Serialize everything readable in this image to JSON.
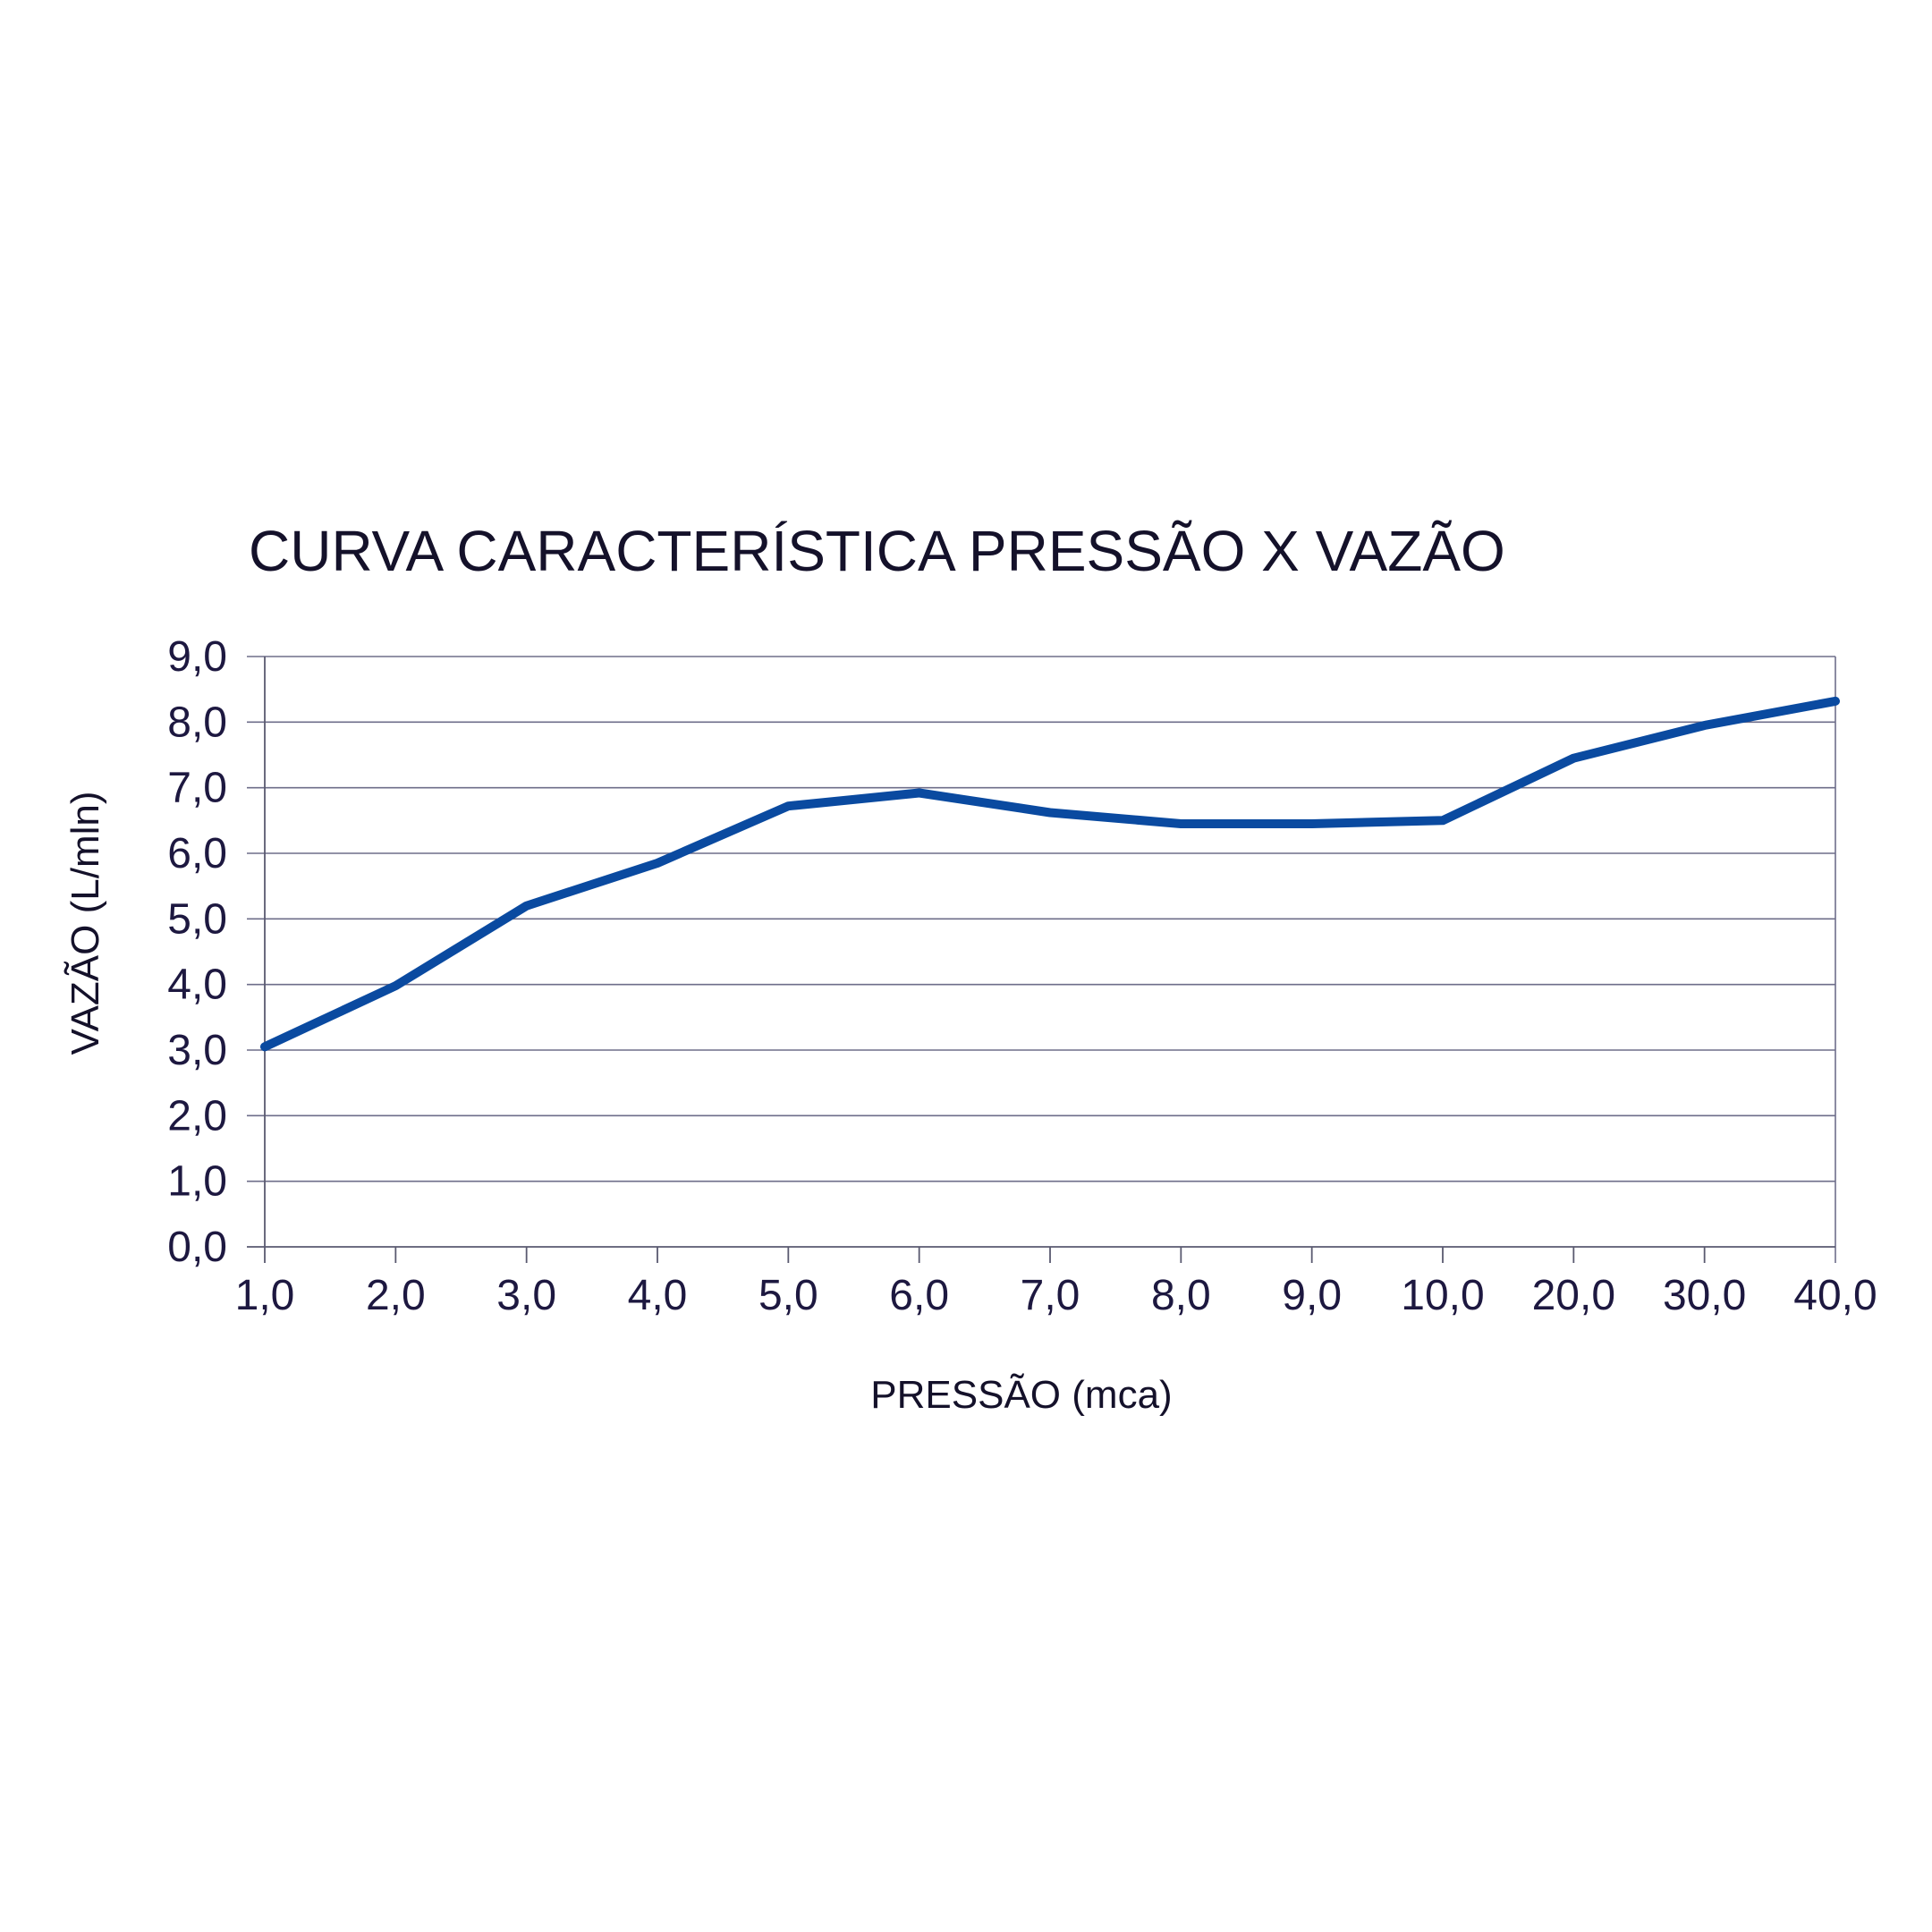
{
  "chart_data": {
    "type": "line",
    "title": "CURVA CARACTERÍSTICA PRESSÃO X VAZÃO",
    "xlabel": "PRESSÃO (mca)",
    "ylabel": "VAZÃO (L/mln)",
    "categories": [
      "1,0",
      "2,0",
      "3,0",
      "4,0",
      "5,0",
      "6,0",
      "7,0",
      "8,0",
      "9,0",
      "10,0",
      "20,0",
      "30,0",
      "40,0"
    ],
    "series": [
      {
        "color": "#0a4aa0",
        "values": [
          3.05,
          3.98,
          5.2,
          5.85,
          6.72,
          6.92,
          6.62,
          6.45,
          6.45,
          6.5,
          7.45,
          7.95,
          8.32
        ]
      }
    ],
    "ylim": [
      0,
      9
    ],
    "yticks": [
      "0,0",
      "1,0",
      "2,0",
      "3,0",
      "4,0",
      "5,0",
      "6,0",
      "7,0",
      "8,0",
      "9,0"
    ],
    "grid": true,
    "legend": "none"
  }
}
